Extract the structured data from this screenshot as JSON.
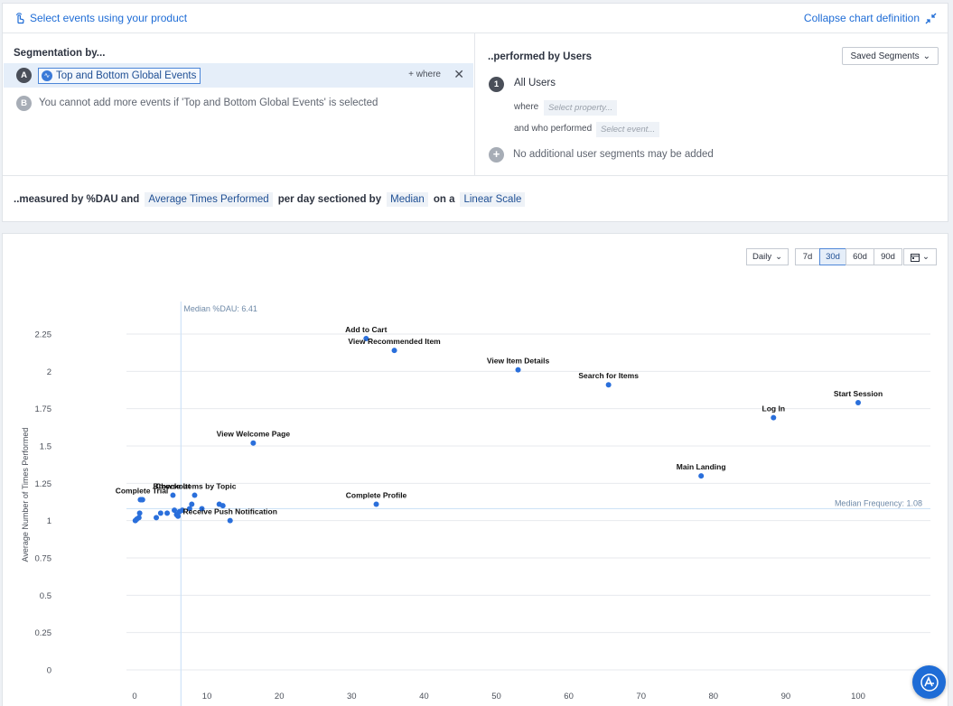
{
  "header": {
    "select_events": "Select events using your product",
    "collapse": "Collapse chart definition"
  },
  "segmentation": {
    "title": "Segmentation by...",
    "event_a_badge": "A",
    "event_a_label": "Top and Bottom Global Events",
    "where_label": "+ where",
    "event_b_badge": "B",
    "event_b_text": "You cannot add more events if 'Top and Bottom Global Events' is selected"
  },
  "users": {
    "title": "..performed by Users",
    "saved_segments": "Saved Segments",
    "segment_number": "1",
    "segment_name": "All Users",
    "where_label": "where",
    "property_placeholder": "Select property...",
    "who_performed_label": "and who performed",
    "event_placeholder": "Select event...",
    "no_more_text": "No additional user segments may be added"
  },
  "measure": {
    "prefix": "..measured by %DAU and",
    "metric": "Average Times Performed",
    "per_day": "per day sectioned by",
    "section": "Median",
    "on_a": "on a",
    "scale": "Linear Scale"
  },
  "controls": {
    "interval": "Daily",
    "ranges": [
      "7d",
      "30d",
      "60d",
      "90d"
    ],
    "active_range": "30d"
  },
  "chart_data": {
    "type": "scatter",
    "ylabel": "Average Number of Times Performed",
    "xlim": [
      0,
      100
    ],
    "ylim": [
      0,
      2.25
    ],
    "x_ticks": [
      0,
      10,
      20,
      30,
      40,
      50,
      60,
      70,
      80,
      90,
      100
    ],
    "y_ticks": [
      "0",
      "0.25",
      "0.5",
      "0.75",
      "1",
      "1.25",
      "1.5",
      "1.75",
      "2",
      "2.25"
    ],
    "y_tick_values": [
      0,
      0.25,
      0.5,
      0.75,
      1,
      1.25,
      1.5,
      1.75,
      2,
      2.25
    ],
    "grid": true,
    "color": "#2a6fdb",
    "median_x": 6.41,
    "median_x_label": "Median %DAU: 6.41",
    "median_y": 1.08,
    "median_y_label": "Median Frequency: 1.08",
    "labeled_points": [
      {
        "name": "Add to Cart",
        "x": 32.0,
        "y": 2.22
      },
      {
        "name": "View Recommended Item",
        "x": 35.9,
        "y": 2.14
      },
      {
        "name": "View Item Details",
        "x": 53.0,
        "y": 2.01
      },
      {
        "name": "Search for Items",
        "x": 65.5,
        "y": 1.91
      },
      {
        "name": "Start Session",
        "x": 100.0,
        "y": 1.79
      },
      {
        "name": "Log In",
        "x": 88.3,
        "y": 1.69
      },
      {
        "name": "View Welcome Page",
        "x": 16.4,
        "y": 1.52
      },
      {
        "name": "Main Landing",
        "x": 78.3,
        "y": 1.3
      },
      {
        "name": "Complete Profile",
        "x": 33.4,
        "y": 1.11
      },
      {
        "name": "Complete Trial",
        "x": 1.0,
        "y": 1.14
      },
      {
        "name": "Checkout",
        "x": 5.3,
        "y": 1.17
      },
      {
        "name": "Browse Items by Topic",
        "x": 8.3,
        "y": 1.17
      },
      {
        "name": "Receive Push Notification",
        "x": 13.2,
        "y": 1.0
      }
    ],
    "other_points": [
      {
        "x": 0.1,
        "y": 1.0
      },
      {
        "x": 0.3,
        "y": 1.01
      },
      {
        "x": 0.6,
        "y": 1.02
      },
      {
        "x": 0.7,
        "y": 1.05
      },
      {
        "x": 0.8,
        "y": 1.14
      },
      {
        "x": 1.1,
        "y": 1.14
      },
      {
        "x": 3.0,
        "y": 1.02
      },
      {
        "x": 3.6,
        "y": 1.05
      },
      {
        "x": 4.5,
        "y": 1.05
      },
      {
        "x": 5.5,
        "y": 1.07
      },
      {
        "x": 5.8,
        "y": 1.04
      },
      {
        "x": 6.0,
        "y": 1.03
      },
      {
        "x": 6.2,
        "y": 1.06
      },
      {
        "x": 6.6,
        "y": 1.07
      },
      {
        "x": 7.6,
        "y": 1.08
      },
      {
        "x": 7.9,
        "y": 1.11
      },
      {
        "x": 9.3,
        "y": 1.08
      },
      {
        "x": 11.7,
        "y": 1.11
      },
      {
        "x": 12.2,
        "y": 1.1
      }
    ]
  }
}
